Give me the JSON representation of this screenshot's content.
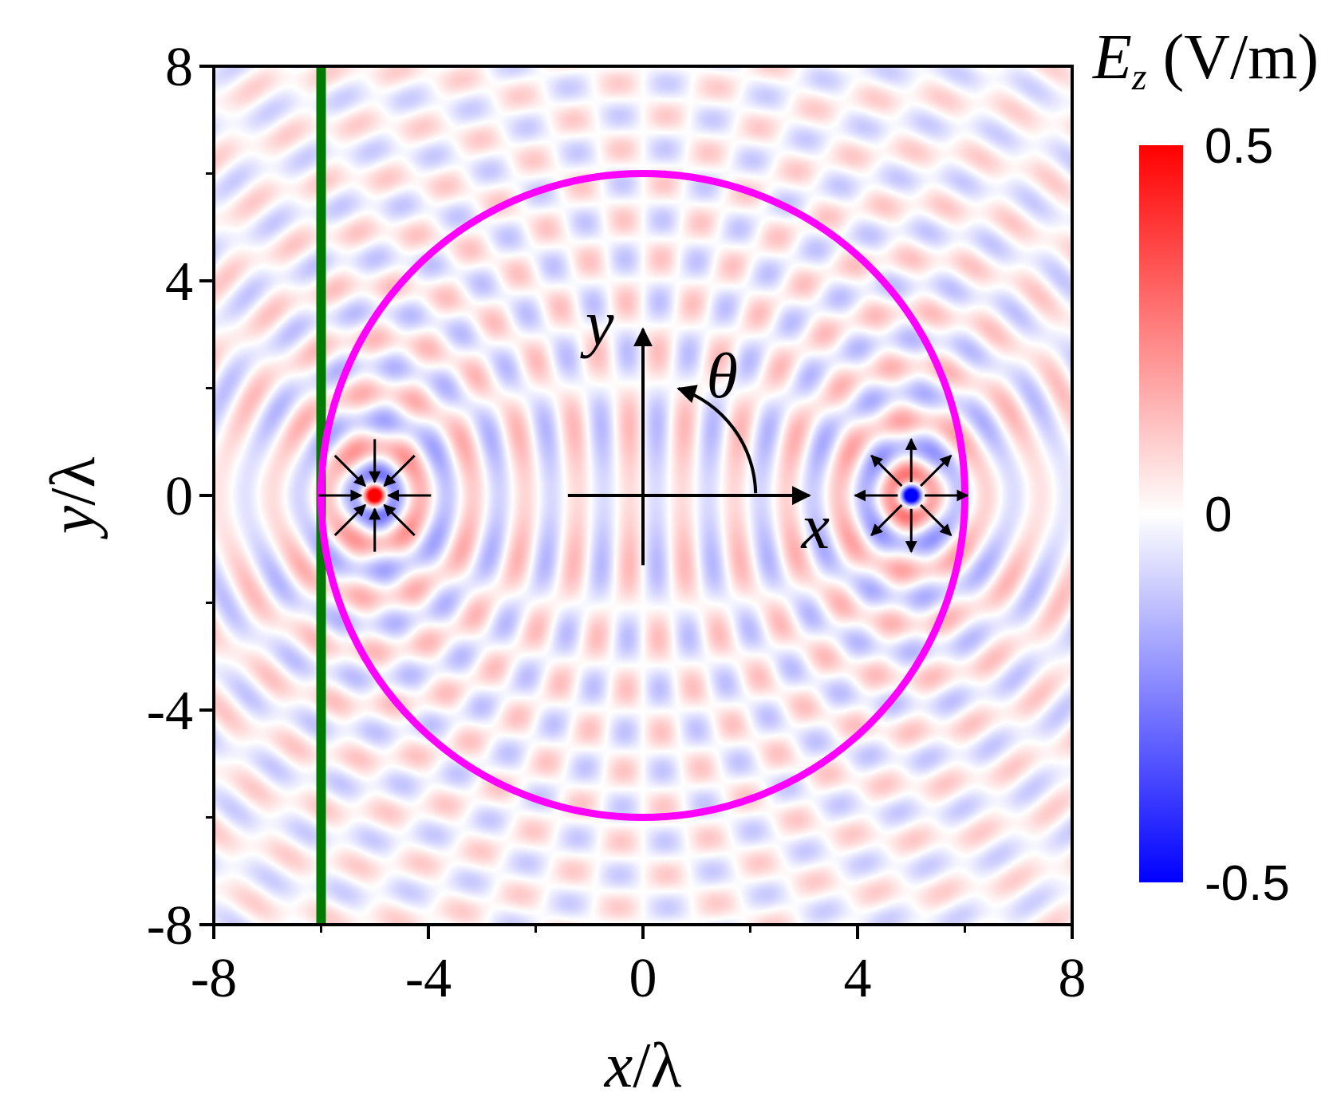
{
  "chart_data": {
    "type": "heatmap",
    "title": "",
    "xlabel_var": "x",
    "xlabel_rest": "/λ",
    "ylabel_var": "y",
    "ylabel_rest": "/λ",
    "xlim": [
      -8,
      8
    ],
    "ylim": [
      -8,
      8
    ],
    "xticks": [
      -8,
      -4,
      0,
      4,
      8
    ],
    "yticks": [
      8,
      4,
      0,
      -4,
      -8
    ],
    "x_tick_labels": [
      "-8",
      "-4",
      "0",
      "4",
      "8"
    ],
    "y_tick_labels": [
      "8",
      "4",
      "0",
      "-4",
      "-8"
    ],
    "colorbar": {
      "title_var": "E",
      "title_sub": "z",
      "title_unit": " (V/m)",
      "range": [
        -0.5,
        0.5
      ],
      "ticks": [
        0.5,
        0,
        -0.5
      ],
      "tick_labels": [
        "0.5",
        "0",
        "-0.5"
      ],
      "colors": {
        "max": "#ff0000",
        "mid": "#ffffff",
        "min": "#0000ff"
      }
    },
    "field": {
      "wavelength": 1,
      "sink": {
        "x": -5,
        "y": 0,
        "label": "converging source (sink)"
      },
      "source": {
        "x": 5,
        "y": 0,
        "label": "diverging source"
      }
    },
    "overlays": {
      "circle": {
        "center": [
          0,
          0
        ],
        "radius": 6,
        "color": "#ff00ff"
      },
      "vertical_line": {
        "x": -6,
        "color": "#007a00"
      },
      "coord_axes": {
        "origin": [
          0,
          0
        ],
        "x_label": "x",
        "y_label": "y",
        "angle_label": "θ",
        "x_end": 3.1,
        "y_end": 3.1,
        "x_start": -1.4,
        "y_start": -1.3
      },
      "arrow_color": "#000000"
    }
  }
}
